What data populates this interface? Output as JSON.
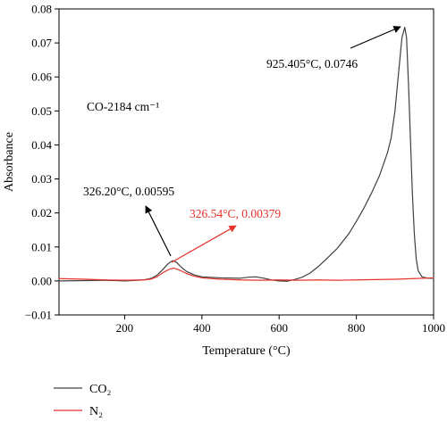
{
  "chart_data": {
    "type": "line",
    "xlabel": "Temperature (°C)",
    "ylabel": "Absorbance",
    "xlim": [
      30,
      1000
    ],
    "ylim": [
      -0.01,
      0.08
    ],
    "x_ticks": [
      200,
      400,
      600,
      800,
      1000
    ],
    "y_ticks": [
      -0.01,
      0.0,
      0.01,
      0.02,
      0.03,
      0.04,
      0.05,
      0.06,
      0.07,
      0.08
    ],
    "x_tick_labels": [
      "200",
      "400",
      "600",
      "800",
      "1000"
    ],
    "y_tick_labels": [
      "−0.01",
      "0.00",
      "0.01",
      "0.02",
      "0.03",
      "0.04",
      "0.05",
      "0.06",
      "0.07",
      "0.08"
    ],
    "grid": false,
    "legend_position": "below-left",
    "series": [
      {
        "name": "CO₂",
        "color": "#404040",
        "x": [
          30,
          100,
          150,
          200,
          250,
          270,
          285,
          300,
          310,
          320,
          326.2,
          335,
          345,
          360,
          380,
          400,
          450,
          500,
          520,
          540,
          560,
          580,
          600,
          620,
          640,
          660,
          680,
          700,
          720,
          750,
          780,
          800,
          820,
          840,
          860,
          880,
          890,
          900,
          910,
          918,
          925.405,
          930,
          935,
          940,
          945,
          950,
          955,
          960,
          970,
          985,
          1000
        ],
        "y": [
          0.0,
          0.0001,
          0.0002,
          0.0,
          0.0003,
          0.0008,
          0.0018,
          0.0035,
          0.0048,
          0.0057,
          0.00595,
          0.0054,
          0.0042,
          0.0028,
          0.0018,
          0.0012,
          0.0009,
          0.0008,
          0.0011,
          0.0012,
          0.0008,
          0.0003,
          0.0,
          -0.0001,
          0.0004,
          0.0011,
          0.0023,
          0.0041,
          0.0062,
          0.0095,
          0.0138,
          0.0175,
          0.0215,
          0.026,
          0.031,
          0.0375,
          0.042,
          0.05,
          0.062,
          0.0715,
          0.0746,
          0.0715,
          0.058,
          0.042,
          0.026,
          0.014,
          0.0065,
          0.003,
          0.0012,
          0.0008,
          0.0008
        ]
      },
      {
        "name": "N₂",
        "color": "#e8322c",
        "x": [
          30,
          100,
          150,
          200,
          250,
          270,
          285,
          300,
          315,
          326.54,
          340,
          360,
          380,
          400,
          450,
          500,
          550,
          600,
          650,
          700,
          750,
          800,
          850,
          900,
          950,
          1000
        ],
        "y": [
          0.0007,
          0.0005,
          0.0003,
          0.0002,
          0.0003,
          0.0006,
          0.0013,
          0.0025,
          0.0034,
          0.00379,
          0.0033,
          0.0022,
          0.0014,
          0.0009,
          0.0005,
          0.0003,
          0.0002,
          0.0003,
          0.0002,
          0.0003,
          0.0002,
          0.0003,
          0.0004,
          0.0005,
          0.0007,
          0.0009
        ]
      }
    ],
    "annotations": [
      {
        "id": "co2_high",
        "text": "925.405°C, 0.0746",
        "color": "#000000",
        "x": 925.405,
        "y": 0.0746
      },
      {
        "id": "co2_low",
        "text": "326.20°C, 0.00595",
        "color": "#000000",
        "x": 326.2,
        "y": 0.00595
      },
      {
        "id": "n2_low",
        "text": "326.54°C, 0.00379",
        "color": "#e8322c",
        "x": 326.54,
        "y": 0.00379
      }
    ],
    "inset_label": "CO-2184 cm⁻¹"
  },
  "legend": [
    {
      "name": "CO₂",
      "color": "#404040"
    },
    {
      "name": "N₂",
      "color": "#e8322c"
    }
  ]
}
